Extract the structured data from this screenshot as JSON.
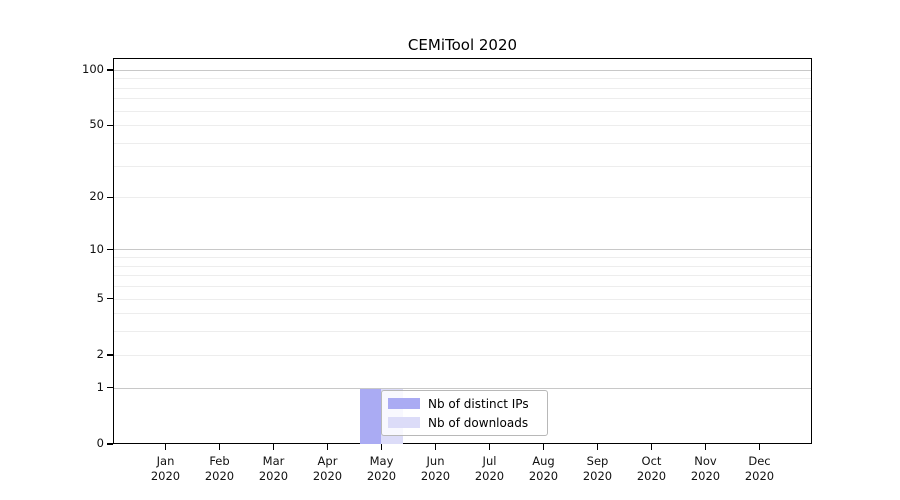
{
  "chart_data": {
    "type": "bar",
    "title": "CEMiTool 2020",
    "categories": [
      "Jan 2020",
      "Feb 2020",
      "Mar 2020",
      "Apr 2020",
      "May 2020",
      "Jun 2020",
      "Jul 2020",
      "Aug 2020",
      "Sep 2020",
      "Oct 2020",
      "Nov 2020",
      "Dec 2020"
    ],
    "series": [
      {
        "name": "Nb of distinct IPs",
        "color": "#aaabf3",
        "values": [
          0,
          0,
          0,
          0,
          1,
          0,
          0,
          0,
          0,
          0,
          0,
          0
        ]
      },
      {
        "name": "Nb of downloads",
        "color": "#dcdcf8",
        "values": [
          0,
          0,
          0,
          0,
          1,
          0,
          0,
          0,
          0,
          0,
          0,
          0
        ]
      }
    ],
    "y_axis": {
      "scale": "log1p",
      "ticks": [
        0,
        1,
        2,
        5,
        10,
        20,
        50,
        100
      ],
      "ylim": [
        0,
        116
      ],
      "gridlines_major": [
        1,
        10,
        100
      ],
      "gridlines_minor": [
        2,
        3,
        4,
        5,
        6,
        7,
        8,
        9,
        20,
        30,
        40,
        50,
        60,
        70,
        80,
        90
      ]
    },
    "x_axis": {
      "label_line2": "2020"
    },
    "legend_position": "lower center",
    "colors": {
      "grid_major": "#c8c8c8",
      "grid_minor": "#ededed",
      "axis": "#000000",
      "background": "#ffffff"
    }
  }
}
